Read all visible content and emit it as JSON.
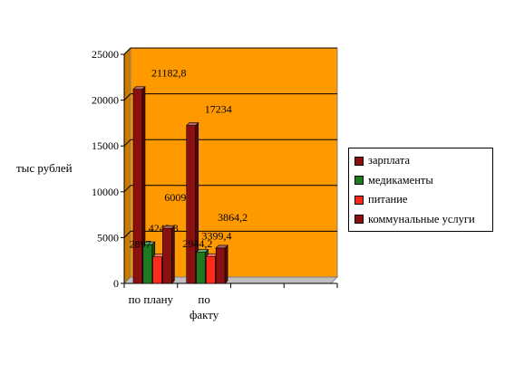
{
  "chart_data": {
    "type": "bar",
    "ylabel": "тыс рублей",
    "ylim": [
      0,
      25000
    ],
    "y_ticks": [
      "0",
      "5000",
      "10000",
      "15000",
      "20000",
      "25000"
    ],
    "categories": [
      "по плану",
      "по фак­ту"
    ],
    "category_lines": [
      [
        "по плану"
      ],
      [
        "по",
        "факту"
      ]
    ],
    "series": [
      {
        "name": "зарплата",
        "color": "#8b1010",
        "values": [
          21182.8,
          17234
        ],
        "labels": [
          "21182,8",
          "17234"
        ]
      },
      {
        "name": "медикаменты",
        "color": "#1f7a1f",
        "values": [
          4243.3,
          3399.4
        ],
        "labels": [
          "4243,3",
          "3399,4"
        ]
      },
      {
        "name": "питание",
        "color": "#ff2a1a",
        "values": [
          2897,
          2944.2
        ],
        "labels": [
          "2897",
          "2944,2"
        ]
      },
      {
        "name": "коммунальные услуги",
        "color": "#8b1010",
        "values": [
          6009,
          3864.2
        ],
        "labels": [
          "6009",
          "3864,2"
        ]
      }
    ],
    "plot_background": "#ff9900",
    "grid": true,
    "legend_position": "right",
    "bar_style": "3d"
  }
}
